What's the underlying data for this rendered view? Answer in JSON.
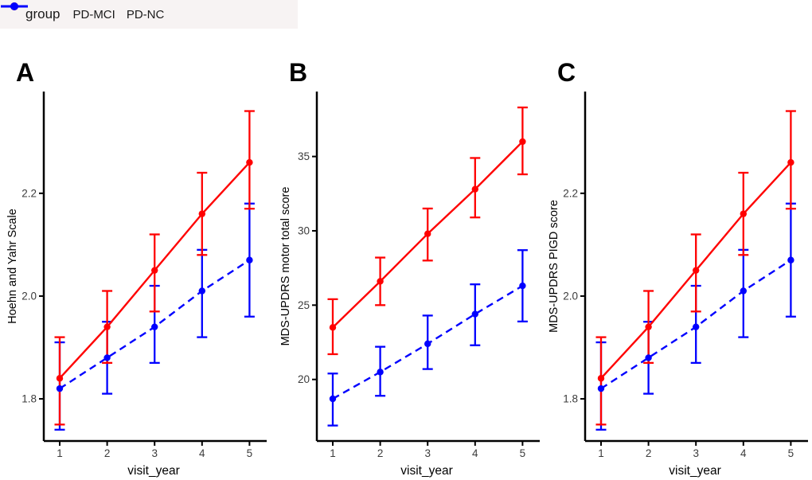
{
  "legend": {
    "title": "group",
    "items": [
      {
        "label": "PD-MCI",
        "color": "#ff0000",
        "dashed": false
      },
      {
        "label": "PD-NC",
        "color": "#0000ff",
        "dashed": true
      }
    ]
  },
  "colors": {
    "pd_mci": "#ff0000",
    "pd_nc": "#0000ff",
    "axis": "#000000",
    "tick_label": "#3c3c3c",
    "legend_bg": "#f7f3f3"
  },
  "chart_data": [
    {
      "type": "line",
      "panel": "A",
      "ylabel": "Hoehn and Yahr Scale",
      "xlabel": "visit_year",
      "x": [
        1,
        2,
        3,
        4,
        5
      ],
      "xtick_labels": [
        "1",
        "2",
        "3",
        "4",
        "5"
      ],
      "ylim": [
        1.718,
        2.398
      ],
      "yticks": [
        1.8,
        2.0,
        2.2
      ],
      "ytick_labels": [
        "1.8",
        "2.0",
        "2.2"
      ],
      "grid": false,
      "legend_position": "top-outside",
      "series": [
        {
          "name": "PD-NC",
          "color": "#0000ff",
          "style": "dashed",
          "values": [
            1.82,
            1.88,
            1.94,
            2.01,
            2.07
          ],
          "lower": [
            1.74,
            1.81,
            1.87,
            1.92,
            1.96
          ],
          "upper": [
            1.91,
            1.95,
            2.02,
            2.09,
            2.18
          ]
        },
        {
          "name": "PD-MCI",
          "color": "#ff0000",
          "style": "solid",
          "values": [
            1.84,
            1.94,
            2.05,
            2.16,
            2.26
          ],
          "lower": [
            1.75,
            1.87,
            1.97,
            2.08,
            2.17
          ],
          "upper": [
            1.92,
            2.01,
            2.12,
            2.24,
            2.36
          ]
        }
      ]
    },
    {
      "type": "line",
      "panel": "B",
      "ylabel": "MDS-UPDRS motor total score",
      "xlabel": "visit_year",
      "x": [
        1,
        2,
        3,
        4,
        5
      ],
      "xtick_labels": [
        "1",
        "2",
        "3",
        "4",
        "5"
      ],
      "ylim": [
        15.86,
        39.37
      ],
      "yticks": [
        20,
        25,
        30,
        35
      ],
      "ytick_labels": [
        "20",
        "25",
        "30",
        "35"
      ],
      "grid": false,
      "legend_position": "top-outside",
      "series": [
        {
          "name": "PD-NC",
          "color": "#0000ff",
          "style": "dashed",
          "values": [
            18.7,
            20.5,
            22.4,
            24.4,
            26.3
          ],
          "lower": [
            16.9,
            18.9,
            20.7,
            22.3,
            23.9
          ],
          "upper": [
            20.4,
            22.2,
            24.3,
            26.4,
            28.7
          ]
        },
        {
          "name": "PD-MCI",
          "color": "#ff0000",
          "style": "solid",
          "values": [
            23.5,
            26.6,
            29.8,
            32.8,
            36.0
          ],
          "lower": [
            21.7,
            25.0,
            28.0,
            30.9,
            33.8
          ],
          "upper": [
            25.4,
            28.2,
            31.5,
            34.9,
            38.3
          ]
        }
      ]
    },
    {
      "type": "line",
      "panel": "C",
      "ylabel": "MDS-UPDRS PIGD score",
      "xlabel": "visit_year",
      "x": [
        1,
        2,
        3,
        4,
        5
      ],
      "xtick_labels": [
        "1",
        "2",
        "3",
        "4",
        "5"
      ],
      "ylim": [
        1.718,
        2.398
      ],
      "yticks": [
        1.8,
        2.0,
        2.2
      ],
      "ytick_labels": [
        "1.8",
        "2.0",
        "2.2"
      ],
      "grid": false,
      "legend_position": "top-outside",
      "series": [
        {
          "name": "PD-NC",
          "color": "#0000ff",
          "style": "dashed",
          "values": [
            1.82,
            1.88,
            1.94,
            2.01,
            2.07
          ],
          "lower": [
            1.74,
            1.81,
            1.87,
            1.92,
            1.96
          ],
          "upper": [
            1.91,
            1.95,
            2.02,
            2.09,
            2.18
          ]
        },
        {
          "name": "PD-MCI",
          "color": "#ff0000",
          "style": "solid",
          "values": [
            1.84,
            1.94,
            2.05,
            2.16,
            2.26
          ],
          "lower": [
            1.75,
            1.87,
            1.97,
            2.08,
            2.17
          ],
          "upper": [
            1.92,
            2.01,
            2.12,
            2.24,
            2.36
          ]
        }
      ]
    }
  ]
}
